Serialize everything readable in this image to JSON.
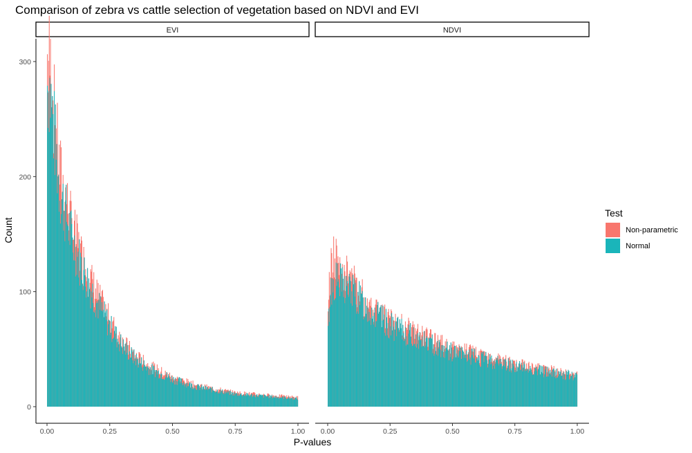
{
  "chart_data": {
    "type": "bar",
    "subtype": "faceted-stacked-histogram",
    "title": "Comparison of zebra vs cattle selection of vegetation based on NDVI and EVI",
    "xlabel": "P-values",
    "ylabel": "Count",
    "xlim": [
      0,
      1
    ],
    "ylim": [
      0,
      320
    ],
    "x_ticks": [
      0.0,
      0.25,
      0.5,
      0.75,
      1.0
    ],
    "x_tick_labels": [
      "0.00",
      "0.25",
      "0.50",
      "0.75",
      "1.00"
    ],
    "y_ticks": [
      0,
      100,
      200,
      300
    ],
    "y_tick_labels": [
      "0",
      "100",
      "200",
      "300"
    ],
    "grid": false,
    "legend": {
      "title": "Test",
      "position": "right",
      "entries": [
        {
          "label": "Non-parametric",
          "color": "#F8766D"
        },
        {
          "label": "Normal",
          "color": "#1AB5BA"
        }
      ]
    },
    "facets": [
      {
        "label": "EVI",
        "x": [
          0.01,
          0.05,
          0.1,
          0.15,
          0.2,
          0.25,
          0.3,
          0.35,
          0.4,
          0.5,
          0.6,
          0.75,
          1.0
        ],
        "normal_values": [
          280,
          190,
          145,
          115,
          90,
          70,
          53,
          42,
          34,
          24,
          17,
          11,
          7
        ],
        "nonparametric_values": [
          300,
          205,
          155,
          122,
          96,
          74,
          56,
          44,
          36,
          25,
          18,
          12,
          8
        ]
      },
      {
        "label": "NDVI",
        "x": [
          0.0,
          0.01,
          0.03,
          0.05,
          0.1,
          0.15,
          0.25,
          0.35,
          0.5,
          0.65,
          0.8,
          1.0
        ],
        "normal_values": [
          60,
          100,
          110,
          107,
          100,
          87,
          70,
          60,
          47,
          40,
          33,
          26
        ],
        "nonparametric_values": [
          75,
          120,
          130,
          122,
          108,
          92,
          74,
          63,
          50,
          42,
          34,
          27
        ]
      }
    ]
  }
}
